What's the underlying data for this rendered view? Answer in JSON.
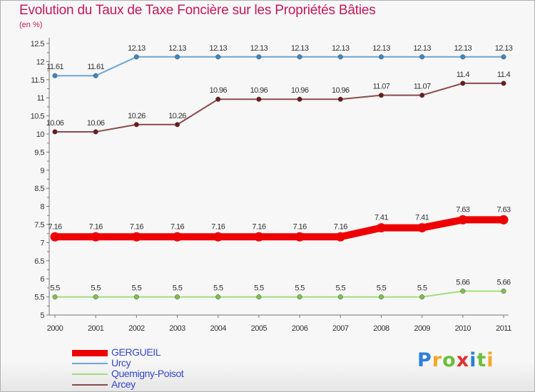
{
  "header": {
    "title": "Evolution du Taux de Taxe Foncière sur les Propriétés Bâties",
    "unit": "(en %)"
  },
  "logo": {
    "letters": [
      "P",
      "r",
      "o",
      "x",
      "i",
      "t",
      "i"
    ],
    "colors": [
      "#2b7fd6",
      "#f5a623",
      "#6cbf3a",
      "#e03030",
      "#2b7fd6",
      "#6cbf3a",
      "#f5a623"
    ]
  },
  "chart_data": {
    "type": "line",
    "title": "Evolution du Taux de Taxe Foncière sur les Propriétés Bâties",
    "ylabel": "(en %)",
    "xlabel": "",
    "x": [
      "2000",
      "2001",
      "2002",
      "2003",
      "2004",
      "2005",
      "2006",
      "2007",
      "2008",
      "2009",
      "2010",
      "2011"
    ],
    "ylim": [
      5,
      12.5
    ],
    "yticks": [
      "5",
      "5.5",
      "6",
      "6.5",
      "7",
      "7.5",
      "8",
      "8.5",
      "9",
      "9.5",
      "10",
      "10.5",
      "11",
      "11.5",
      "12",
      "12.5"
    ],
    "grid": false,
    "legend_position": "bottom-left",
    "series": [
      {
        "name": "GERGUEIL",
        "color": "#ee0000",
        "emphasis": "thick",
        "values": [
          7.16,
          7.16,
          7.16,
          7.16,
          7.16,
          7.16,
          7.16,
          7.16,
          7.41,
          7.41,
          7.63,
          7.63
        ],
        "labels": [
          "7.16",
          "7.16",
          "7.16",
          "7.16",
          "7.16",
          "7.16",
          "7.16",
          "7.16",
          "7.41",
          "7.41",
          "7.63",
          "7.63"
        ]
      },
      {
        "name": "Urcy",
        "color": "#6aa8d6",
        "marker_color": "#3d86c2",
        "values": [
          11.61,
          11.61,
          12.13,
          12.13,
          12.13,
          12.13,
          12.13,
          12.13,
          12.13,
          12.13,
          12.13,
          12.13
        ],
        "labels": [
          "11.61",
          "11.61",
          "12.13",
          "12.13",
          "12.13",
          "12.13",
          "12.13",
          "12.13",
          "12.13",
          "12.13",
          "12.13",
          "12.13"
        ]
      },
      {
        "name": "Quemigny-Poisot",
        "color": "#a6dc7a",
        "marker_color": "#7cc04a",
        "values": [
          5.5,
          5.5,
          5.5,
          5.5,
          5.5,
          5.5,
          5.5,
          5.5,
          5.5,
          5.5,
          5.66,
          5.66
        ],
        "labels": [
          "5.5",
          "5.5",
          "5.5",
          "5.5",
          "5.5",
          "5.5",
          "5.5",
          "5.5",
          "5.5",
          "5.5",
          "5.66",
          "5.66"
        ]
      },
      {
        "name": "Arcey",
        "color": "#8a4a4a",
        "marker_color": "#6b1a1a",
        "values": [
          10.06,
          10.06,
          10.26,
          10.26,
          10.96,
          10.96,
          10.96,
          10.96,
          11.07,
          11.07,
          11.4,
          11.4
        ],
        "labels": [
          "10.06",
          "10.06",
          "10.26",
          "10.26",
          "10.96",
          "10.96",
          "10.96",
          "10.96",
          "11.07",
          "11.07",
          "11.4",
          "11.4"
        ]
      }
    ]
  }
}
